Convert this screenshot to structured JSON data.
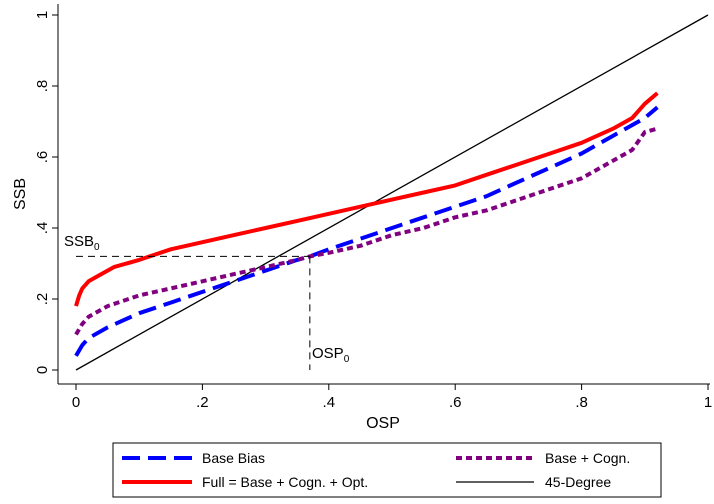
{
  "chart_data": {
    "type": "line",
    "xlabel": "OSP",
    "ylabel": "SSB",
    "xlim": [
      0,
      1
    ],
    "ylim": [
      0,
      1
    ],
    "x_ticks": [
      0,
      0.2,
      0.4,
      0.6,
      0.8,
      1
    ],
    "x_tick_labels": [
      "0",
      ".2",
      ".4",
      ".6",
      ".8",
      "1"
    ],
    "y_ticks": [
      0,
      0.2,
      0.4,
      0.6,
      0.8,
      1
    ],
    "y_tick_labels": [
      "0",
      ".2",
      ".4",
      ".6",
      ".8",
      "1"
    ],
    "grid": false,
    "legend_position": "bottom",
    "series": [
      {
        "name": "Base Bias",
        "color": "#0000ff",
        "style": "long-dash",
        "x": [
          0,
          0.01,
          0.02,
          0.05,
          0.1,
          0.15,
          0.2,
          0.25,
          0.3,
          0.35,
          0.37,
          0.4,
          0.45,
          0.5,
          0.55,
          0.6,
          0.65,
          0.7,
          0.75,
          0.8,
          0.85,
          0.9,
          0.92
        ],
        "y": [
          0.04,
          0.07,
          0.09,
          0.12,
          0.16,
          0.19,
          0.22,
          0.25,
          0.28,
          0.31,
          0.32,
          0.34,
          0.37,
          0.4,
          0.43,
          0.46,
          0.49,
          0.53,
          0.57,
          0.61,
          0.66,
          0.71,
          0.74
        ]
      },
      {
        "name": "Base + Cogn.",
        "color": "#800080",
        "style": "short-dash",
        "x": [
          0,
          0.01,
          0.02,
          0.05,
          0.1,
          0.15,
          0.2,
          0.25,
          0.3,
          0.35,
          0.37,
          0.4,
          0.45,
          0.5,
          0.55,
          0.6,
          0.65,
          0.7,
          0.75,
          0.8,
          0.85,
          0.88,
          0.9,
          0.92
        ],
        "y": [
          0.1,
          0.13,
          0.15,
          0.18,
          0.21,
          0.23,
          0.25,
          0.27,
          0.29,
          0.31,
          0.32,
          0.33,
          0.35,
          0.38,
          0.4,
          0.43,
          0.45,
          0.48,
          0.51,
          0.54,
          0.59,
          0.62,
          0.67,
          0.68
        ]
      },
      {
        "name": "Full = Base + Cogn. + Opt.",
        "color": "#ff0000",
        "style": "solid",
        "x": [
          0,
          0.005,
          0.01,
          0.02,
          0.04,
          0.06,
          0.1,
          0.15,
          0.2,
          0.25,
          0.3,
          0.35,
          0.4,
          0.45,
          0.5,
          0.55,
          0.6,
          0.65,
          0.7,
          0.75,
          0.8,
          0.85,
          0.88,
          0.9,
          0.92
        ],
        "y": [
          0.18,
          0.21,
          0.23,
          0.25,
          0.27,
          0.29,
          0.31,
          0.34,
          0.36,
          0.38,
          0.4,
          0.42,
          0.44,
          0.46,
          0.48,
          0.5,
          0.52,
          0.55,
          0.58,
          0.61,
          0.64,
          0.68,
          0.71,
          0.75,
          0.78
        ]
      },
      {
        "name": "45-Degree",
        "color": "#000000",
        "style": "thin",
        "x": [
          0,
          1
        ],
        "y": [
          0,
          1
        ]
      }
    ],
    "annotations": {
      "ssb0": {
        "label": "SSB",
        "subscript": "0",
        "value": 0.32
      },
      "osp0": {
        "label": "OSP",
        "subscript": "0",
        "value": 0.37
      }
    }
  }
}
